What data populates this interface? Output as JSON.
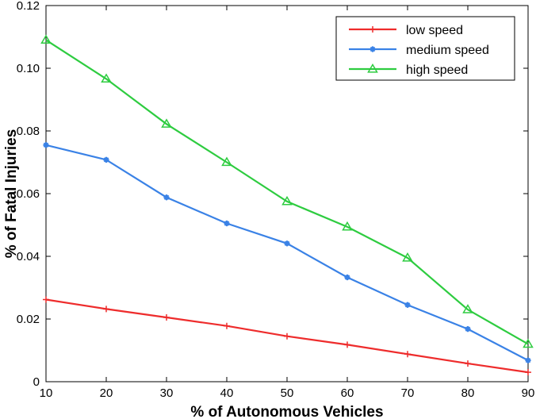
{
  "chart_data": {
    "type": "line",
    "title": "",
    "xlabel": "% of Autonomous Vehicles",
    "ylabel": "% of Fatal Injuries",
    "x": [
      10,
      20,
      30,
      40,
      50,
      60,
      70,
      80,
      90
    ],
    "xlim": [
      10,
      90
    ],
    "ylim": [
      0,
      0.12
    ],
    "xticks": [
      "10",
      "20",
      "30",
      "40",
      "50",
      "60",
      "70",
      "80",
      "90"
    ],
    "yticks": [
      "0",
      "0.02",
      "0.04",
      "0.06",
      "0.08",
      "0.10",
      "0.12"
    ],
    "grid": false,
    "legend_position": "top-right",
    "series": [
      {
        "name": "low speed",
        "color": "#ee2c2c",
        "marker": "plus",
        "values": [
          0.0262,
          0.0232,
          0.0205,
          0.0178,
          0.0145,
          0.0118,
          0.0088,
          0.0058,
          0.003
        ]
      },
      {
        "name": "medium speed",
        "color": "#3a82e6",
        "marker": "asterisk",
        "values": [
          0.0755,
          0.0708,
          0.0588,
          0.0505,
          0.0441,
          0.0333,
          0.0245,
          0.0168,
          0.0068
        ]
      },
      {
        "name": "high speed",
        "color": "#2ecc40",
        "marker": "triangle",
        "values": [
          0.109,
          0.0966,
          0.0822,
          0.07,
          0.0575,
          0.0494,
          0.0395,
          0.023,
          0.012
        ]
      }
    ]
  }
}
